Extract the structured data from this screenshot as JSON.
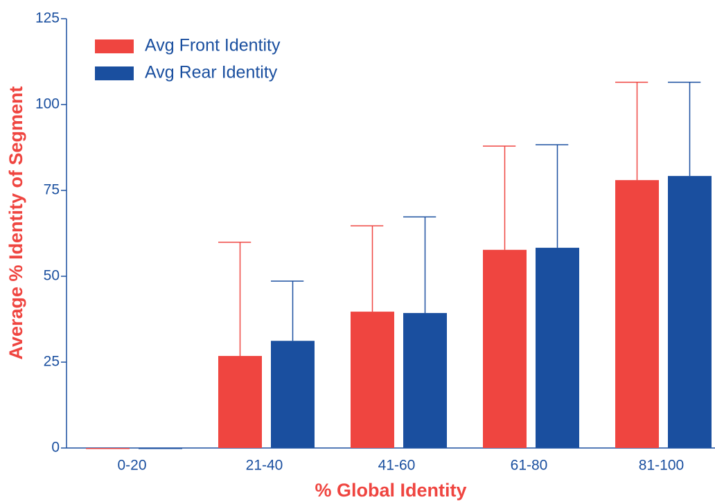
{
  "chart_data": {
    "type": "bar",
    "x_label": "% Global Identity",
    "y_label": "Average % Identity of Segment",
    "categories": [
      "0-20",
      "21-40",
      "41-60",
      "61-80",
      "81-100"
    ],
    "series": [
      {
        "name": "Avg Front Identity",
        "color": "#ef4540",
        "values": [
          0,
          26.8,
          39.7,
          57.7,
          78.0
        ],
        "errors": [
          0,
          33.1,
          25.0,
          30.2,
          28.5
        ]
      },
      {
        "name": "Avg Rear Identity",
        "color": "#1a4f9f",
        "values": [
          0,
          31.2,
          39.3,
          58.3,
          79.2
        ],
        "errors": [
          0,
          17.4,
          28.0,
          30.0,
          27.3
        ]
      }
    ],
    "ylim": [
      0,
      125
    ],
    "yticks": [
      0,
      25,
      50,
      75,
      100,
      125
    ],
    "legend": "upper-left"
  }
}
